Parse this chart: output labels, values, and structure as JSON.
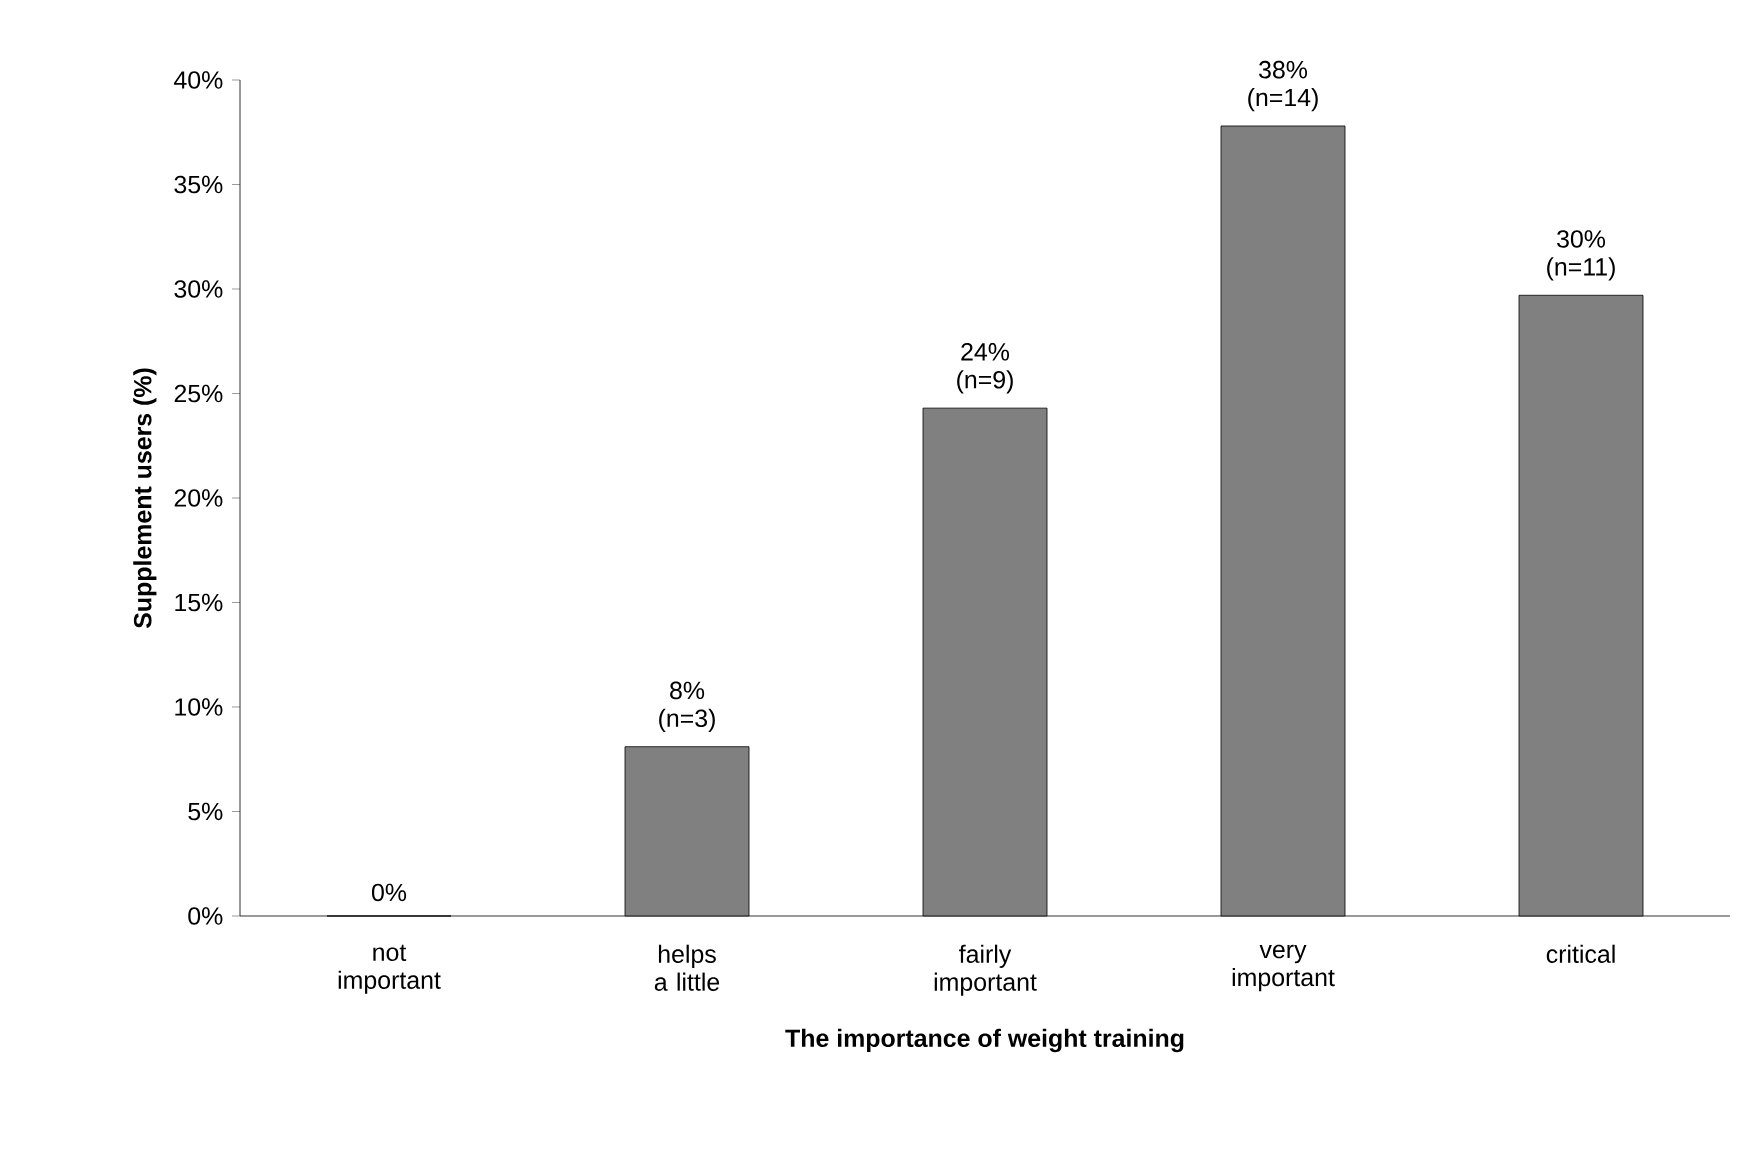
{
  "chart_data": {
    "type": "bar",
    "xlabel": "The importance of weight training",
    "ylabel": "Supplement users (%)",
    "categories": [
      "not important",
      "helps a little",
      "fairly important",
      "very important",
      "critical"
    ],
    "values": [
      0,
      8.1,
      24.3,
      37.8,
      29.7
    ],
    "value_labels": [
      "0%",
      "8% (n=3)",
      "24% (n=9)",
      "38% (n=14)",
      "30% (n=11)"
    ],
    "color": "#808080",
    "ylim": [
      0,
      40
    ],
    "yticks": [
      {
        "value": 0,
        "label": "0%"
      },
      {
        "value": 5,
        "label": "5%"
      },
      {
        "value": 10,
        "label": "10%"
      },
      {
        "value": 15,
        "label": "15%"
      },
      {
        "value": 20,
        "label": "20%"
      },
      {
        "value": 25,
        "label": "25%"
      },
      {
        "value": 30,
        "label": "30%"
      },
      {
        "value": 35,
        "label": "35%"
      },
      {
        "value": 40,
        "label": "40%"
      }
    ],
    "grid": false
  }
}
